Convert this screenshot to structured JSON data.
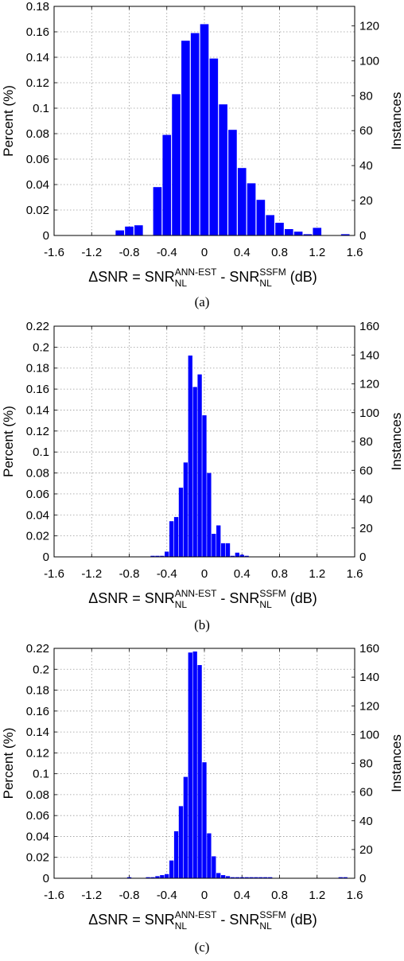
{
  "chart_data": [
    {
      "type": "bar",
      "caption": "(a)",
      "ylabel": "Percent (%)",
      "y2label": "Instances",
      "xlabel": {
        "main": "ΔSNR = SNR",
        "sub1": "NL",
        "sup1": "ANN-EST",
        "mid": " - SNR",
        "sub2": "NL",
        "sup2": "SSFM",
        "unit": " (dB)"
      },
      "xlim": [
        -1.6,
        1.6
      ],
      "ylim": [
        0,
        0.18
      ],
      "y2lim": [
        0,
        131.1
      ],
      "xticks": [
        "-1.6",
        "-1.2",
        "-0.8",
        "-0.4",
        "0",
        "0.4",
        "0.8",
        "1.2",
        "1.6"
      ],
      "yticks": [
        "0",
        "0.02",
        "0.04",
        "0.06",
        "0.08",
        "0.1",
        "0.12",
        "0.14",
        "0.16",
        "0.18"
      ],
      "y2ticks": [
        "0",
        "20",
        "40",
        "60",
        "80",
        "100",
        "120"
      ],
      "y2tick_values": [
        0,
        20,
        40,
        60,
        80,
        100,
        120
      ],
      "grid": true,
      "bar_color": "#0000ff",
      "bar_width": 0.1,
      "x": [
        -0.9,
        -0.8,
        -0.7,
        -0.5,
        -0.4,
        -0.3,
        -0.2,
        -0.1,
        0.0,
        0.1,
        0.2,
        0.3,
        0.4,
        0.5,
        0.6,
        0.7,
        0.8,
        0.9,
        1.0,
        1.1,
        1.2,
        1.3,
        1.5
      ],
      "values": [
        0.004,
        0.007,
        0.008,
        0.038,
        0.079,
        0.111,
        0.153,
        0.159,
        0.166,
        0.139,
        0.103,
        0.083,
        0.053,
        0.041,
        0.028,
        0.016,
        0.01,
        0.005,
        0.003,
        0.001,
        0.006,
        0.0,
        0.001
      ]
    },
    {
      "type": "bar",
      "caption": "(b)",
      "ylabel": "Percent (%)",
      "y2label": "Instances",
      "xlabel": {
        "main": "ΔSNR = SNR",
        "sub1": "NL",
        "sup1": "ANN-EST",
        "mid": " - SNR",
        "sub2": "NL",
        "sup2": "SSFM",
        "unit": " (dB)"
      },
      "xlim": [
        -1.6,
        1.6
      ],
      "ylim": [
        0,
        0.22
      ],
      "y2lim": [
        0,
        160
      ],
      "xticks": [
        "-1.6",
        "-1.2",
        "-0.8",
        "-0.4",
        "0",
        "0.4",
        "0.8",
        "1.2",
        "1.6"
      ],
      "yticks": [
        "0",
        "0.02",
        "0.04",
        "0.06",
        "0.08",
        "0.1",
        "0.12",
        "0.14",
        "0.16",
        "0.18",
        "0.2",
        "0.22"
      ],
      "y2ticks": [
        "0",
        "20",
        "40",
        "60",
        "80",
        "100",
        "120",
        "140",
        "160"
      ],
      "y2tick_values": [
        0,
        20,
        40,
        60,
        80,
        100,
        120,
        140,
        160
      ],
      "grid": true,
      "bar_color": "#0000ff",
      "bar_width": 0.05,
      "x": [
        -0.6,
        -0.55,
        -0.5,
        -0.45,
        -0.4,
        -0.35,
        -0.3,
        -0.25,
        -0.2,
        -0.15,
        -0.1,
        -0.05,
        0.0,
        0.05,
        0.1,
        0.15,
        0.2,
        0.25,
        0.3,
        0.35,
        0.4,
        0.45,
        0.5,
        0.55,
        0.6,
        0.65,
        0.7,
        0.75,
        0.8,
        0.85,
        0.9
      ],
      "values": [
        0.0,
        0.001,
        0.001,
        0.001,
        0.005,
        0.034,
        0.038,
        0.066,
        0.09,
        0.192,
        0.162,
        0.174,
        0.135,
        0.08,
        0.022,
        0.03,
        0.013,
        0.013,
        0.001,
        0.004,
        0.002,
        0.001,
        0,
        0,
        0,
        0,
        0,
        0,
        0,
        0,
        0
      ]
    },
    {
      "type": "bar",
      "caption": "(c)",
      "ylabel": "Percent (%)",
      "y2label": "Instances",
      "xlabel": {
        "main": "ΔSNR = SNR",
        "sub1": "NL",
        "sup1": "ANN-EST",
        "mid": " - SNR",
        "sub2": "NL",
        "sup2": "SSFM",
        "unit": " (dB)"
      },
      "xlim": [
        -1.6,
        1.6
      ],
      "ylim": [
        0,
        0.22
      ],
      "y2lim": [
        0,
        160
      ],
      "xticks": [
        "-1.6",
        "-1.2",
        "-0.8",
        "-0.4",
        "0",
        "0.4",
        "0.8",
        "1.2",
        "1.6"
      ],
      "yticks": [
        "0",
        "0.02",
        "0.04",
        "0.06",
        "0.08",
        "0.1",
        "0.12",
        "0.14",
        "0.16",
        "0.18",
        "0.2",
        "0.22"
      ],
      "y2ticks": [
        "0",
        "20",
        "40",
        "60",
        "80",
        "100",
        "120",
        "140",
        "160"
      ],
      "y2tick_values": [
        0,
        20,
        40,
        60,
        80,
        100,
        120,
        140,
        160
      ],
      "grid": true,
      "bar_color": "#0000ff",
      "bar_width": 0.05,
      "x": [
        -0.8,
        -0.6,
        -0.55,
        -0.5,
        -0.45,
        -0.4,
        -0.35,
        -0.3,
        -0.25,
        -0.2,
        -0.15,
        -0.1,
        -0.05,
        0.0,
        0.05,
        0.1,
        0.15,
        0.2,
        0.25,
        0.3,
        0.35,
        0.4,
        0.45,
        0.5,
        0.55,
        0.6,
        0.65,
        0.7,
        1.45,
        1.5
      ],
      "values": [
        0.001,
        0.001,
        0.001,
        0.002,
        0.003,
        0.004,
        0.017,
        0.045,
        0.069,
        0.097,
        0.216,
        0.217,
        0.204,
        0.111,
        0.043,
        0.021,
        0.005,
        0.003,
        0.002,
        0.001,
        0.001,
        0.001,
        0.001,
        0.001,
        0.001,
        0.001,
        0.001,
        0.001,
        0.001,
        0.001
      ]
    }
  ]
}
